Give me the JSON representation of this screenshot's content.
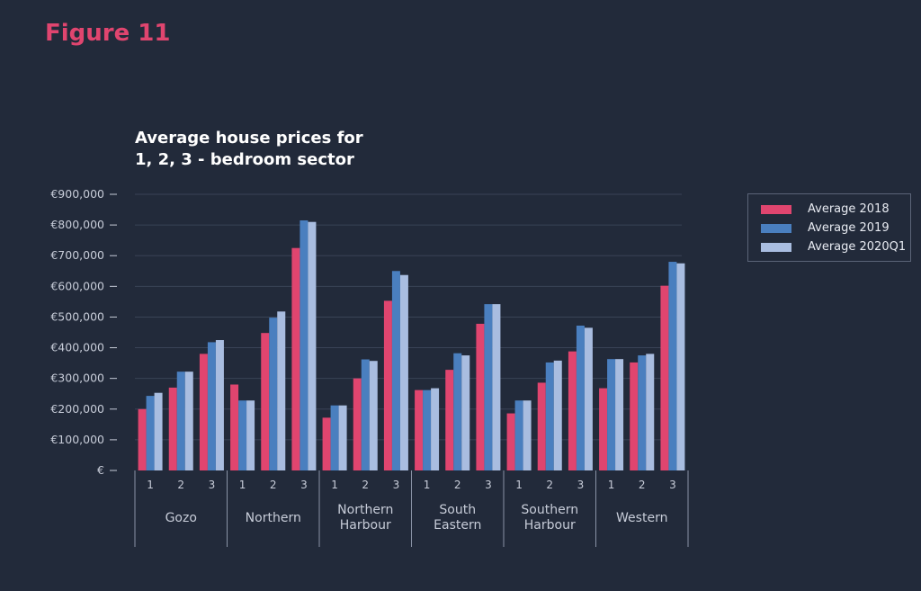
{
  "figure_label": "Figure 11",
  "chart_data": {
    "type": "bar",
    "title_lines": [
      "Average house prices for",
      "1, 2, 3 - bedroom sector"
    ],
    "groups": [
      {
        "label_lines": [
          "Gozo"
        ],
        "categories": [
          "1",
          "2",
          "3"
        ]
      },
      {
        "label_lines": [
          "Northern"
        ],
        "categories": [
          "1",
          "2",
          "3"
        ]
      },
      {
        "label_lines": [
          "Northern",
          "Harbour"
        ],
        "categories": [
          "1",
          "2",
          "3"
        ]
      },
      {
        "label_lines": [
          "South",
          "Eastern"
        ],
        "categories": [
          "1",
          "2",
          "3"
        ]
      },
      {
        "label_lines": [
          "Southern",
          "Harbour"
        ],
        "categories": [
          "1",
          "2",
          "3"
        ]
      },
      {
        "label_lines": [
          "Western"
        ],
        "categories": [
          "1",
          "2",
          "3"
        ]
      }
    ],
    "series": [
      {
        "name": "Average 2018",
        "color": "#e0456f",
        "values": [
          200000,
          270000,
          380000,
          280000,
          448000,
          725000,
          172000,
          300000,
          553000,
          262000,
          328000,
          478000,
          186000,
          286000,
          388000,
          268000,
          352000,
          602000
        ]
      },
      {
        "name": "Average 2019",
        "color": "#4a7fbf",
        "values": [
          243000,
          322000,
          418000,
          228000,
          498000,
          815000,
          212000,
          362000,
          650000,
          262000,
          382000,
          542000,
          228000,
          352000,
          472000,
          363000,
          375000,
          680000
        ]
      },
      {
        "name": "Average 2020Q1",
        "color": "#a9bde0",
        "values": [
          253000,
          322000,
          425000,
          228000,
          518000,
          810000,
          212000,
          357000,
          637000,
          268000,
          375000,
          542000,
          228000,
          358000,
          465000,
          363000,
          380000,
          675000
        ]
      }
    ],
    "yticks": [
      "€",
      "€100,000",
      "€200,000",
      "€300,000",
      "€400,000",
      "€500,000",
      "€600,000",
      "€700,000",
      "€800,000",
      "€900,000"
    ],
    "ytick_values": [
      0,
      100000,
      200000,
      300000,
      400000,
      500000,
      600000,
      700000,
      800000,
      900000
    ],
    "ylim": [
      0,
      900000
    ],
    "grid": true,
    "legend_position": "right"
  }
}
